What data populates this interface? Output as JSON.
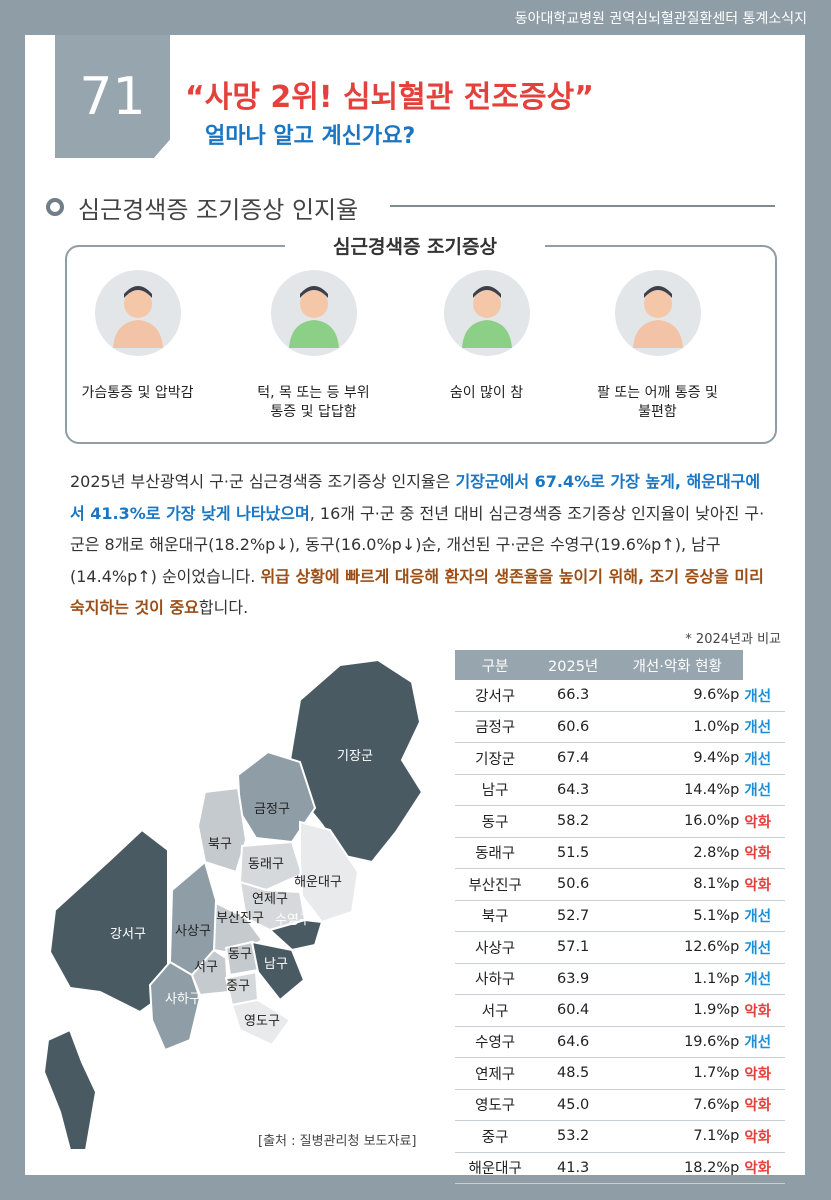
{
  "header": {
    "top_text": "동아대학교병원 권역심뇌혈관질환센터 통계소식지",
    "number": "71",
    "title": "“사망 2위! 심뇌혈관 전조증상”",
    "subtitle": "얼마나 알고 계신가요?"
  },
  "section_title": "심근경색증 조기증상 인지율",
  "symptoms": {
    "title": "심근경색증 조기증상",
    "items": [
      "가슴통증 및 압박감",
      "턱, 목 또는 등 부위\n통증 및 답답함",
      "숨이 많이 참",
      "팔 또는 어깨 통증 및\n불편함"
    ]
  },
  "paragraph": [
    "2025년 부산광역시 구·군  심근경색증 조기증상 인지율은 ",
    "기장군에서 67.4%로 가장 높게, 해운대구에서 41.3%로 가장 낮게 나타났으며",
    ", 16개 구·군 중 전년 대비 심근경색증 조기증상 인지율이 낮아진 구·군은 8개로 해운대구(18.2%p↓), 동구(16.0%p↓)순, 개선된 구·군은 수영구(19.6%p↑), 남구(14.4%p↑) 순이었습니다. ",
    "위급 상황에 빠르게 대응해 환자의 생존율을 높이기 위해, 조기 증상을 미리 숙지하는 것이 중요",
    "합니다."
  ],
  "table": {
    "note": "* 2024년과 비교",
    "header": [
      "구분",
      "2025년",
      "개선·악화 현황"
    ],
    "status_colors": {
      "개선": "#1a8fd6",
      "악화": "#e5413c"
    },
    "rows": [
      [
        "강서구",
        "66.3",
        "9.6%p",
        "개선"
      ],
      [
        "금정구",
        "60.6",
        "1.0%p",
        "개선"
      ],
      [
        "기장군",
        "67.4",
        "9.4%p",
        "개선"
      ],
      [
        "남구",
        "64.3",
        "14.4%p",
        "개선"
      ],
      [
        "동구",
        "58.2",
        "16.0%p",
        "악화"
      ],
      [
        "동래구",
        "51.5",
        "2.8%p",
        "악화"
      ],
      [
        "부산진구",
        "50.6",
        "8.1%p",
        "악화"
      ],
      [
        "북구",
        "52.7",
        "5.1%p",
        "개선"
      ],
      [
        "사상구",
        "57.1",
        "12.6%p",
        "개선"
      ],
      [
        "사하구",
        "63.9",
        "1.1%p",
        "개선"
      ],
      [
        "서구",
        "60.4",
        "1.9%p",
        "악화"
      ],
      [
        "수영구",
        "64.6",
        "19.6%p",
        "개선"
      ],
      [
        "연제구",
        "48.5",
        "1.7%p",
        "악화"
      ],
      [
        "영도구",
        "45.0",
        "7.6%p",
        "악화"
      ],
      [
        "중구",
        "53.2",
        "7.1%p",
        "악화"
      ],
      [
        "해운대구",
        "41.3",
        "18.2%p",
        "악화"
      ]
    ]
  },
  "map": {
    "labels": [
      "기장군",
      "금정구",
      "북구",
      "동래구",
      "해운대구",
      "연제구",
      "부산진구",
      "수영구",
      "강서구",
      "사상구",
      "동구",
      "서구",
      "남구",
      "중구",
      "사하구",
      "영도구"
    ],
    "source": "[출처 : 질병관리청 보도자료]"
  }
}
